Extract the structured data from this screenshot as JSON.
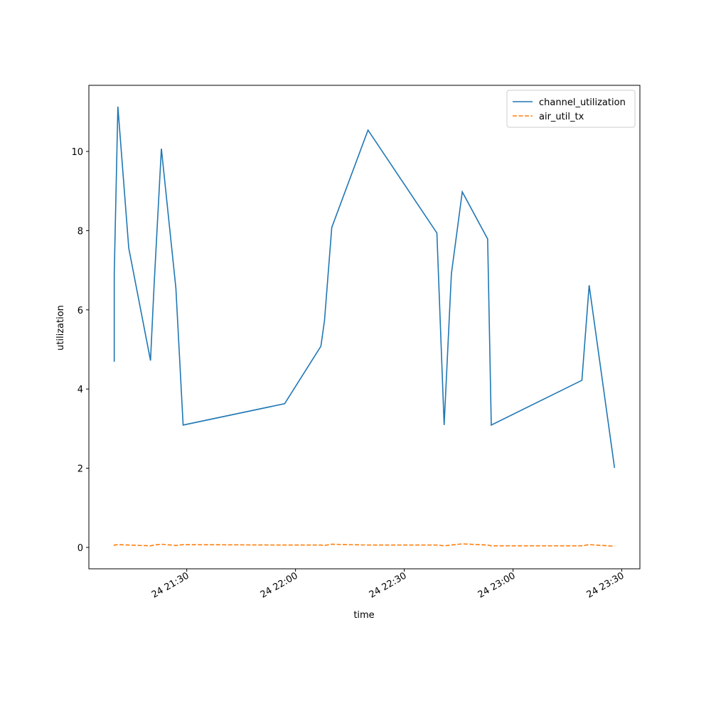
{
  "chart_data": {
    "type": "line",
    "x_label": "time",
    "y_label": "utilization",
    "x": [
      "24 21:10",
      "24 21:10",
      "24 21:11",
      "24 21:14",
      "24 21:20",
      "24 21:21",
      "24 21:23",
      "24 21:27",
      "24 21:29",
      "24 21:57",
      "24 22:07",
      "24 22:08",
      "24 22:10",
      "24 22:20",
      "24 22:39",
      "24 22:41",
      "24 22:43",
      "24 22:46",
      "24 22:53",
      "24 22:54",
      "24 23:19",
      "24 23:21",
      "24 23:28"
    ],
    "series": [
      {
        "name": "channel_utilization",
        "color": "#1f77b4",
        "linestyle": "solid",
        "values": [
          4.69,
          6.91,
          11.13,
          7.56,
          4.72,
          6.64,
          10.07,
          6.55,
          3.09,
          3.63,
          5.08,
          5.73,
          8.08,
          10.54,
          7.94,
          3.09,
          6.91,
          8.98,
          7.79,
          3.09,
          4.22,
          6.62,
          2.01
        ]
      },
      {
        "name": "air_util_tx",
        "color": "#ff7f0e",
        "linestyle": "dashed",
        "values": [
          0.04,
          0.06,
          0.07,
          0.06,
          0.04,
          0.06,
          0.08,
          0.05,
          0.07,
          0.06,
          0.06,
          0.05,
          0.08,
          0.06,
          0.06,
          0.04,
          0.06,
          0.09,
          0.06,
          0.04,
          0.04,
          0.07,
          0.03
        ]
      }
    ],
    "xlim": [
      "24 21:03",
      "24 23:35"
    ],
    "xticks": [
      "24 21:30",
      "24 22:00",
      "24 22:30",
      "24 23:00",
      "24 23:30"
    ],
    "ylim": [
      -0.54,
      11.67
    ],
    "yticks": [
      0,
      2,
      4,
      6,
      8,
      10
    ],
    "legend": "upper right"
  }
}
